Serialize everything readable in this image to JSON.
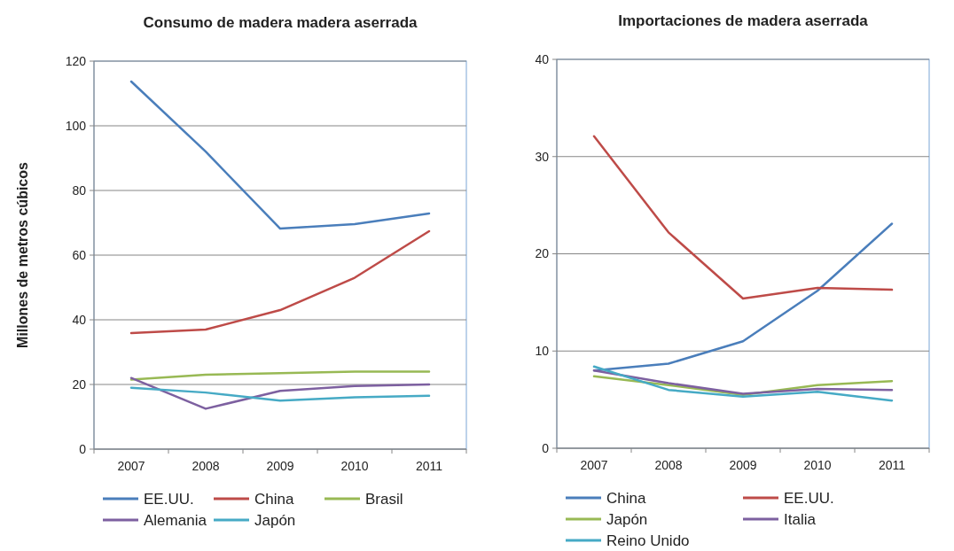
{
  "chart_data": [
    {
      "type": "line",
      "title": "Consumo de madera madera aserrada",
      "ylabel": "Millones de metros cúbicos",
      "categories": [
        "2007",
        "2008",
        "2009",
        "2010",
        "2011"
      ],
      "ylim": [
        0,
        120
      ],
      "yticks": [
        0,
        20,
        40,
        60,
        80,
        100,
        120
      ],
      "grid": "y",
      "legend": "bottom",
      "series": [
        {
          "name": "EE.UU.",
          "color": "#4a7ebb",
          "values": [
            113.7,
            92,
            68.2,
            69.6,
            72.9
          ]
        },
        {
          "name": "China",
          "color": "#be4b48",
          "values": [
            35.9,
            37,
            43,
            53,
            67.4
          ]
        },
        {
          "name": "Brasil",
          "color": "#98b954",
          "values": [
            21.5,
            23,
            23.5,
            24,
            24
          ]
        },
        {
          "name": "Alemania",
          "color": "#7d60a0",
          "values": [
            22,
            12.5,
            18,
            19.5,
            20
          ]
        },
        {
          "name": "Japón",
          "color": "#46aac5",
          "values": [
            19,
            17.5,
            15,
            16,
            16.5
          ]
        }
      ]
    },
    {
      "type": "line",
      "title": "Importaciones de madera aserrada",
      "categories": [
        "2007",
        "2008",
        "2009",
        "2010",
        "2011"
      ],
      "ylim": [
        0,
        40
      ],
      "yticks": [
        0,
        10,
        20,
        30,
        40
      ],
      "grid": "y",
      "legend": "bottom",
      "series": [
        {
          "name": "China",
          "color": "#4a7ebb",
          "values": [
            8,
            8.7,
            11,
            16.2,
            23.1
          ]
        },
        {
          "name": "EE.UU.",
          "color": "#be4b48",
          "values": [
            32.1,
            22.2,
            15.4,
            16.5,
            16.3
          ]
        },
        {
          "name": "Japón",
          "color": "#98b954",
          "values": [
            7.4,
            6.5,
            5.5,
            6.5,
            6.9
          ]
        },
        {
          "name": "Italia",
          "color": "#7d60a0",
          "values": [
            8,
            6.7,
            5.6,
            6.1,
            6.0
          ]
        },
        {
          "name": "Reino Unido",
          "color": "#46aac5",
          "values": [
            8.4,
            6,
            5.3,
            5.8,
            4.9
          ]
        }
      ]
    }
  ]
}
